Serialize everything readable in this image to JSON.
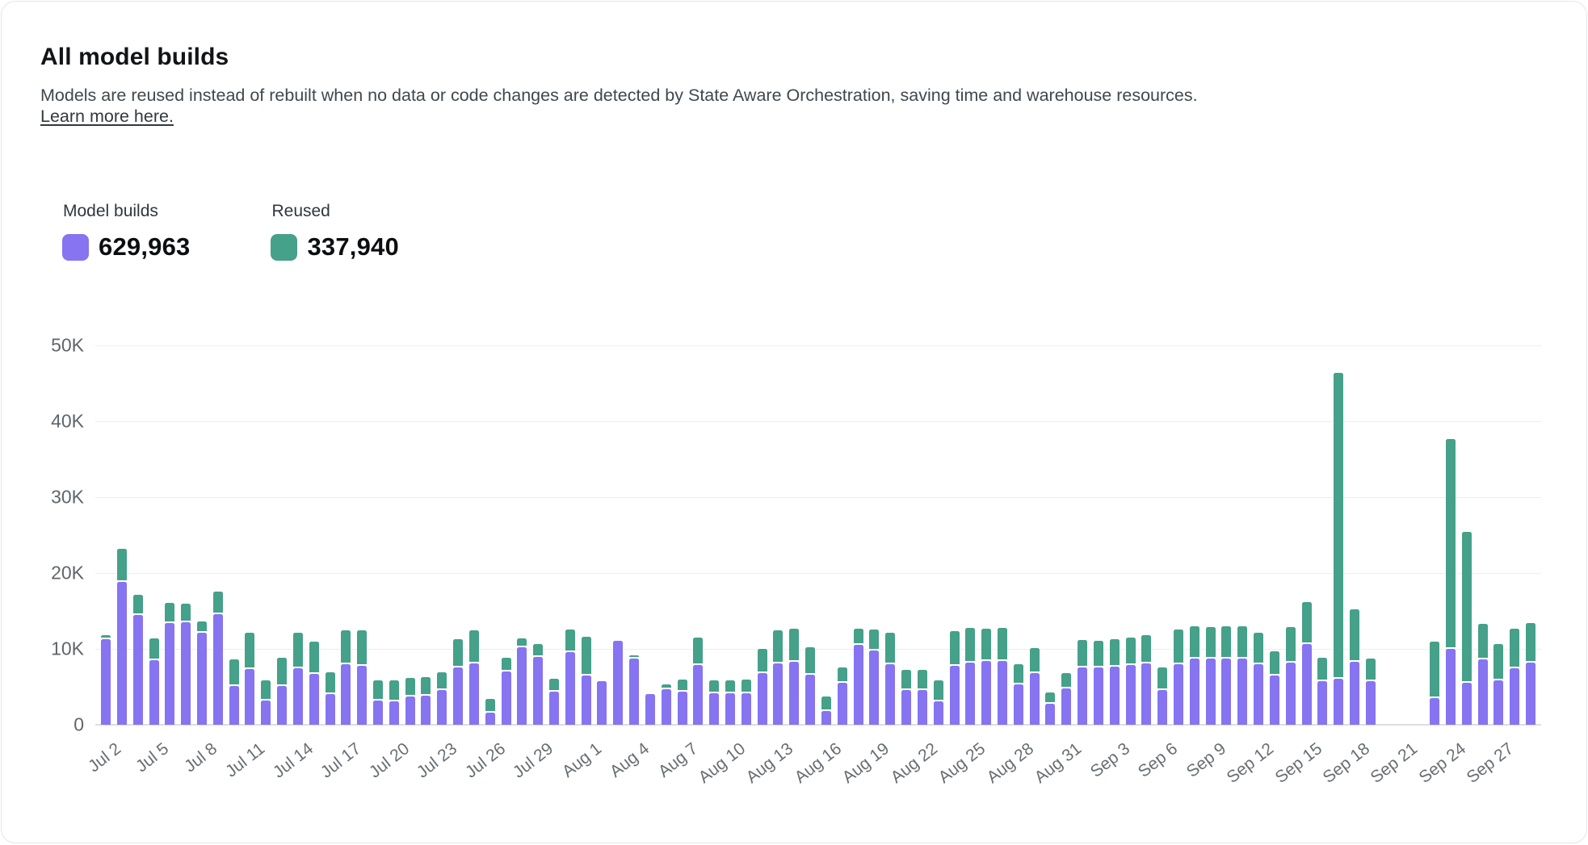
{
  "card": {
    "title": "All model builds",
    "description": "Models are reused instead of rebuilt when no data or code changes are detected by State Aware Orchestration, saving time and warehouse resources.",
    "link_text": "Learn more here."
  },
  "legend": [
    {
      "label": "Model builds",
      "value": "629,963",
      "color": "#8674f1"
    },
    {
      "label": "Reused",
      "value": "337,940",
      "color": "#45a189"
    }
  ],
  "chart_data": {
    "type": "bar",
    "stacked": true,
    "grid": "horizontal",
    "legend_position": "top-left",
    "unit_note": "bar values in thousands (K)",
    "ylim": [
      0,
      50
    ],
    "y_axis": {
      "ticks": [
        "0",
        "10K",
        "20K",
        "30K",
        "40K",
        "50K"
      ],
      "tick_step_k": 10
    },
    "x_axis": {
      "label_every_n_days": 3,
      "first_label": "Jul 2",
      "last_label": "Sep 27"
    },
    "categories": [
      "Jul 2",
      "Jul 3",
      "Jul 4",
      "Jul 5",
      "Jul 6",
      "Jul 7",
      "Jul 8",
      "Jul 9",
      "Jul 10",
      "Jul 11",
      "Jul 12",
      "Jul 13",
      "Jul 14",
      "Jul 15",
      "Jul 16",
      "Jul 17",
      "Jul 18",
      "Jul 19",
      "Jul 20",
      "Jul 21",
      "Jul 22",
      "Jul 23",
      "Jul 24",
      "Jul 25",
      "Jul 26",
      "Jul 27",
      "Jul 28",
      "Jul 29",
      "Jul 30",
      "Jul 31",
      "Aug 1",
      "Aug 2",
      "Aug 3",
      "Aug 4",
      "Aug 5",
      "Aug 6",
      "Aug 7",
      "Aug 8",
      "Aug 9",
      "Aug 10",
      "Aug 11",
      "Aug 12",
      "Aug 13",
      "Aug 14",
      "Aug 15",
      "Aug 16",
      "Aug 17",
      "Aug 18",
      "Aug 19",
      "Aug 20",
      "Aug 21",
      "Aug 22",
      "Aug 23",
      "Aug 24",
      "Aug 25",
      "Aug 26",
      "Aug 27",
      "Aug 28",
      "Aug 29",
      "Aug 30",
      "Aug 31",
      "Sep 1",
      "Sep 2",
      "Sep 3",
      "Sep 4",
      "Sep 5",
      "Sep 6",
      "Sep 7",
      "Sep 8",
      "Sep 9",
      "Sep 10",
      "Sep 11",
      "Sep 12",
      "Sep 13",
      "Sep 14",
      "Sep 15",
      "Sep 16",
      "Sep 17",
      "Sep 18",
      "Sep 19",
      "Sep 20",
      "Sep 21",
      "Sep 22",
      "Sep 23",
      "Sep 24",
      "Sep 25",
      "Sep 26",
      "Sep 27",
      "Sep 28",
      "Sep 29"
    ],
    "series": [
      {
        "name": "Model builds",
        "color": "#8674f1",
        "values": [
          11.3,
          18.8,
          14.5,
          8.5,
          13.4,
          13.5,
          12.1,
          14.6,
          5.1,
          7.3,
          3.2,
          5.1,
          7.4,
          6.7,
          4.0,
          8.0,
          7.8,
          3.2,
          3.1,
          3.7,
          3.8,
          4.6,
          7.6,
          8.1,
          1.6,
          7.0,
          10.2,
          8.9,
          4.4,
          9.6,
          6.5,
          5.7,
          11.1,
          8.7,
          4.0,
          4.7,
          4.4,
          7.9,
          4.2,
          4.2,
          4.2,
          6.8,
          8.1,
          8.3,
          6.6,
          1.8,
          5.5,
          10.5,
          9.8,
          8.0,
          4.6,
          4.6,
          3.1,
          7.8,
          8.2,
          8.4,
          8.4,
          5.3,
          6.8,
          2.8,
          4.8,
          7.6,
          7.6,
          7.7,
          7.9,
          8.1,
          4.6,
          8.0,
          8.7,
          8.7,
          8.7,
          8.7,
          8.0,
          6.5,
          8.2,
          10.6,
          5.8,
          6.1,
          8.3,
          5.8,
          0,
          0,
          0,
          3.5,
          10.0,
          5.5,
          8.6,
          5.9,
          7.5,
          8.2
        ]
      },
      {
        "name": "Reused",
        "color": "#45a189",
        "values": [
          0.3,
          4.2,
          2.4,
          2.7,
          2.5,
          2.2,
          1.3,
          2.8,
          3.3,
          4.6,
          2.4,
          3.5,
          4.5,
          4.1,
          2.7,
          4.2,
          4.4,
          2.4,
          2.5,
          2.3,
          2.3,
          2.1,
          3.5,
          4.1,
          1.6,
          1.6,
          1.0,
          1.5,
          1.5,
          2.8,
          4.9,
          0,
          0,
          0.2,
          0,
          0.4,
          1.3,
          3.4,
          1.4,
          1.4,
          1.6,
          3.0,
          4.1,
          4.2,
          3.4,
          1.7,
          1.8,
          1.9,
          2.5,
          3.9,
          2.4,
          2.4,
          2.5,
          4.3,
          4.4,
          4.0,
          4.2,
          2.5,
          3.1,
          1.3,
          1.8,
          3.4,
          3.3,
          3.4,
          3.4,
          3.5,
          2.7,
          4.3,
          4.1,
          4.0,
          4.1,
          4.1,
          3.9,
          3.0,
          4.5,
          5.4,
          2.8,
          40.1,
          6.7,
          2.7,
          0,
          0,
          0,
          7.2,
          27.5,
          19.7,
          4.5,
          4.5,
          5.0,
          5.0
        ]
      }
    ]
  }
}
